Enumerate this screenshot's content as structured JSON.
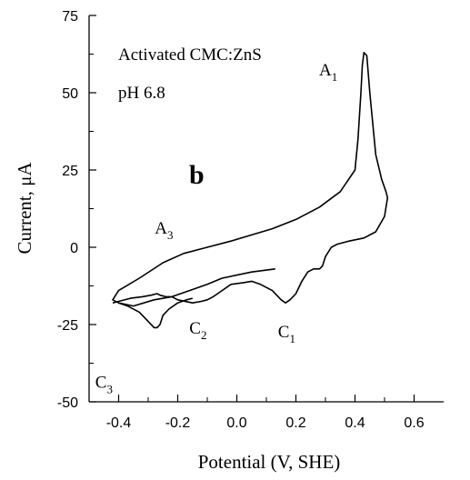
{
  "chart_data": {
    "type": "line",
    "xlabel": "Potential (V, SHE)",
    "ylabel": "Current,  μA",
    "xlim": [
      -0.5,
      0.7
    ],
    "ylim": [
      -50,
      75
    ],
    "xticks": [
      "-0.4",
      "-0.2",
      "0.0",
      "0.2",
      "0.4",
      "0.6"
    ],
    "xtick_values": [
      -0.4,
      -0.2,
      0.0,
      0.2,
      0.4,
      0.6
    ],
    "yticks": [
      "-50",
      "-25",
      "0",
      "25",
      "50",
      "75"
    ],
    "ytick_values": [
      -50,
      -25,
      0,
      25,
      50,
      75
    ],
    "grid": false,
    "texts": {
      "line1": "Activated CMC:ZnS",
      "line2": "pH 6.8",
      "panel": "b"
    },
    "peaks": [
      {
        "base": "A",
        "sub": "1",
        "x": 0.42,
        "y": 63
      },
      {
        "base": "A",
        "sub": "3",
        "x": -0.05,
        "y": 2
      },
      {
        "base": "C",
        "sub": "1",
        "x": 0.17,
        "y": -18
      },
      {
        "base": "C",
        "sub": "2",
        "x": -0.05,
        "y": -17
      },
      {
        "base": "C",
        "sub": "3",
        "x": -0.27,
        "y": -26
      }
    ],
    "series": [
      {
        "x": [
          0.13,
          0.05,
          -0.05,
          -0.1,
          -0.16,
          -0.22,
          -0.28,
          -0.35,
          -0.4,
          -0.42,
          -0.4,
          -0.33,
          -0.25,
          -0.18,
          -0.1,
          -0.02,
          0.05,
          0.12,
          0.2,
          0.28,
          0.35,
          0.4,
          0.41,
          0.42,
          0.425,
          0.43,
          0.44,
          0.45,
          0.47,
          0.49,
          0.505,
          0.51,
          0.5,
          0.47,
          0.43,
          0.38,
          0.34,
          0.32,
          0.3,
          0.29,
          0.28,
          0.26,
          0.24,
          0.22,
          0.2,
          0.18,
          0.165,
          0.15,
          0.12,
          0.08,
          0.05,
          0.02,
          -0.02,
          -0.05,
          -0.08,
          -0.1,
          -0.12,
          -0.15,
          -0.2,
          -0.22,
          -0.24,
          -0.26,
          -0.27,
          -0.29,
          -0.32,
          -0.36,
          -0.4,
          -0.42
        ],
        "y": [
          -7,
          -8,
          -10,
          -12,
          -14,
          -16,
          -17,
          -19,
          -18,
          -17,
          -14,
          -10,
          -5,
          -2,
          0,
          2,
          4,
          6,
          9,
          13,
          18,
          25,
          35,
          50,
          59,
          63,
          62,
          50,
          30,
          22,
          18,
          16,
          10,
          5,
          3,
          2,
          1,
          0,
          -3,
          -6,
          -7,
          -7,
          -8,
          -11,
          -15,
          -17,
          -18,
          -17,
          -14,
          -12,
          -11,
          -11.5,
          -12,
          -14,
          -16,
          -17,
          -17.5,
          -18,
          -17,
          -16,
          -16,
          -15.5,
          -15,
          -15.5,
          -16,
          -16.5,
          -17.5,
          -18
        ]
      },
      {
        "x": [
          -0.4,
          -0.37,
          -0.33,
          -0.3,
          -0.28,
          -0.27,
          -0.26,
          -0.25,
          -0.23,
          -0.2,
          -0.17,
          -0.15
        ],
        "y": [
          -18,
          -19,
          -21,
          -24,
          -26,
          -26,
          -25,
          -22,
          -20,
          -18,
          -17,
          -16.5
        ]
      }
    ]
  }
}
